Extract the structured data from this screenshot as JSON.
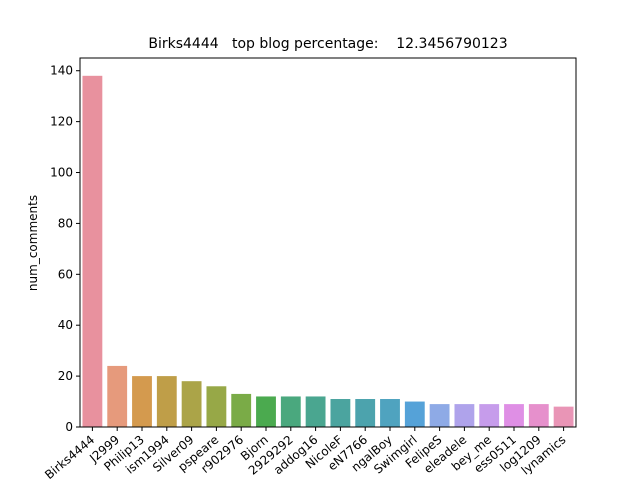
{
  "chart_data": {
    "type": "bar",
    "title": "Birks4444   top blog percentage:    12.3456790123",
    "xlabel": "",
    "ylabel": "num_comments",
    "ylim": [
      0,
      145
    ],
    "yticks": [
      0,
      20,
      40,
      60,
      80,
      100,
      120,
      140
    ],
    "grid": false,
    "categories": [
      "Birks4444",
      "J2999",
      "Philip13",
      "ism1994",
      "Silver09",
      "pspeare",
      "r902976",
      "Bjorn",
      "2929292",
      "addog16",
      "NicoleF",
      "eN7766",
      "ngalBoy",
      "Swimgirl",
      "FelipeS",
      "eleadele",
      "bey_me",
      "ess0511",
      "log1209",
      "lynamics"
    ],
    "values": [
      138,
      24,
      20,
      20,
      18,
      16,
      13,
      12,
      12,
      12,
      11,
      11,
      11,
      10,
      9,
      9,
      9,
      9,
      9,
      8
    ],
    "colors": [
      "#e8919e",
      "#e69a7c",
      "#d49a4e",
      "#bf9e48",
      "#aba448",
      "#97a847",
      "#7aab47",
      "#4baa4f",
      "#4aa87e",
      "#4aa690",
      "#4ba49f",
      "#4ca3ad",
      "#4fa3bf",
      "#55a2d8",
      "#8eaae6",
      "#afa3eb",
      "#c69ceb",
      "#df8fe5",
      "#e690cc",
      "#e995b6"
    ]
  }
}
